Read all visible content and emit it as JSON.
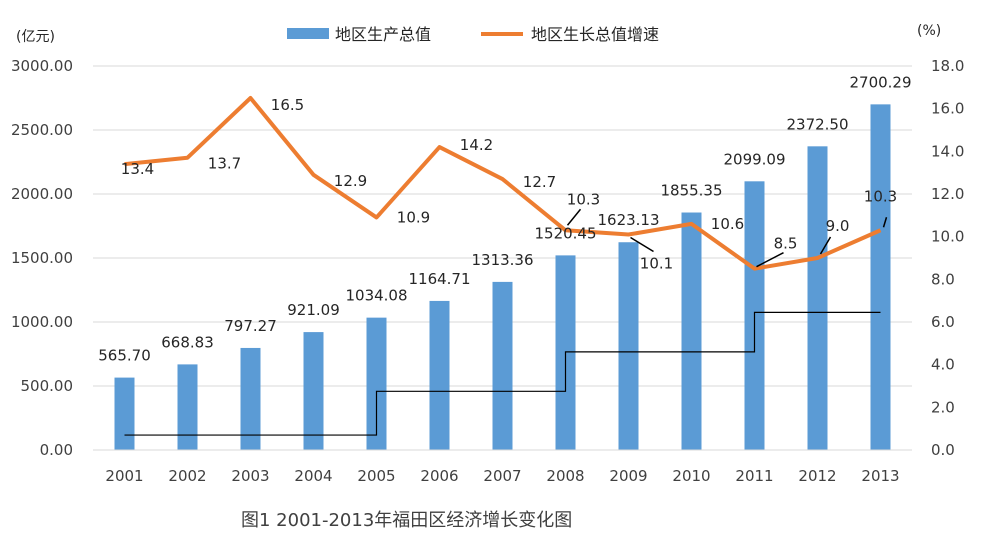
{
  "chart_data": {
    "type": "bar+line",
    "title": "",
    "caption": "图1   2001-2013年福田区经济增长变化图",
    "categories": [
      "2001",
      "2002",
      "2003",
      "2004",
      "2005",
      "2006",
      "2007",
      "2008",
      "2009",
      "2010",
      "2011",
      "2012",
      "2013"
    ],
    "series": [
      {
        "name": "地区生产总值",
        "type": "bar",
        "axis": "left",
        "color": "#5B9BD5",
        "values": [
          565.7,
          668.83,
          797.27,
          921.09,
          1034.08,
          1164.71,
          1313.36,
          1520.45,
          1623.13,
          1855.35,
          2099.09,
          2372.5,
          2700.29
        ],
        "labels": [
          "565.70",
          "668.83",
          "797.27",
          "921.09",
          "1034.08",
          "1164.71",
          "1313.36",
          "1520.45",
          "1623.13",
          "1855.35",
          "2099.09",
          "2372.50",
          "2700.29"
        ]
      },
      {
        "name": "地区生长总值增速",
        "type": "line",
        "axis": "right",
        "color": "#ED7D31",
        "values": [
          13.4,
          13.7,
          16.5,
          12.9,
          10.9,
          14.2,
          12.7,
          10.3,
          10.1,
          10.6,
          8.5,
          9.0,
          10.3
        ],
        "labels": [
          "13.4",
          "13.7",
          "16.5",
          "12.9",
          "10.9",
          "14.2",
          "12.7",
          "10.3",
          "10.1",
          "10.6",
          "8.5",
          "9.0",
          "10.3"
        ]
      }
    ],
    "y_left": {
      "unit": "(亿元)",
      "ylim": [
        0,
        3000
      ],
      "ticks": [
        "0.00",
        "500.00",
        "1000.00",
        "1500.00",
        "2000.00",
        "2500.00",
        "3000.00"
      ]
    },
    "y_right": {
      "unit": "(%)",
      "ylim": [
        0,
        18
      ],
      "ticks": [
        "0.0",
        "2.0",
        "4.0",
        "6.0",
        "8.0",
        "10.0",
        "12.0",
        "14.0",
        "16.0",
        "18.0"
      ]
    },
    "step_line": {
      "color": "#000000",
      "segments": [
        {
          "from": "2001",
          "to": "2005",
          "value": 0.7
        },
        {
          "from": "2005",
          "to": "2008",
          "value": 2.75
        },
        {
          "from": "2008",
          "to": "2011",
          "value": 4.6
        },
        {
          "from": "2011",
          "to": "2013",
          "value": 6.45
        }
      ]
    },
    "grid": true,
    "legend": "top-center"
  }
}
